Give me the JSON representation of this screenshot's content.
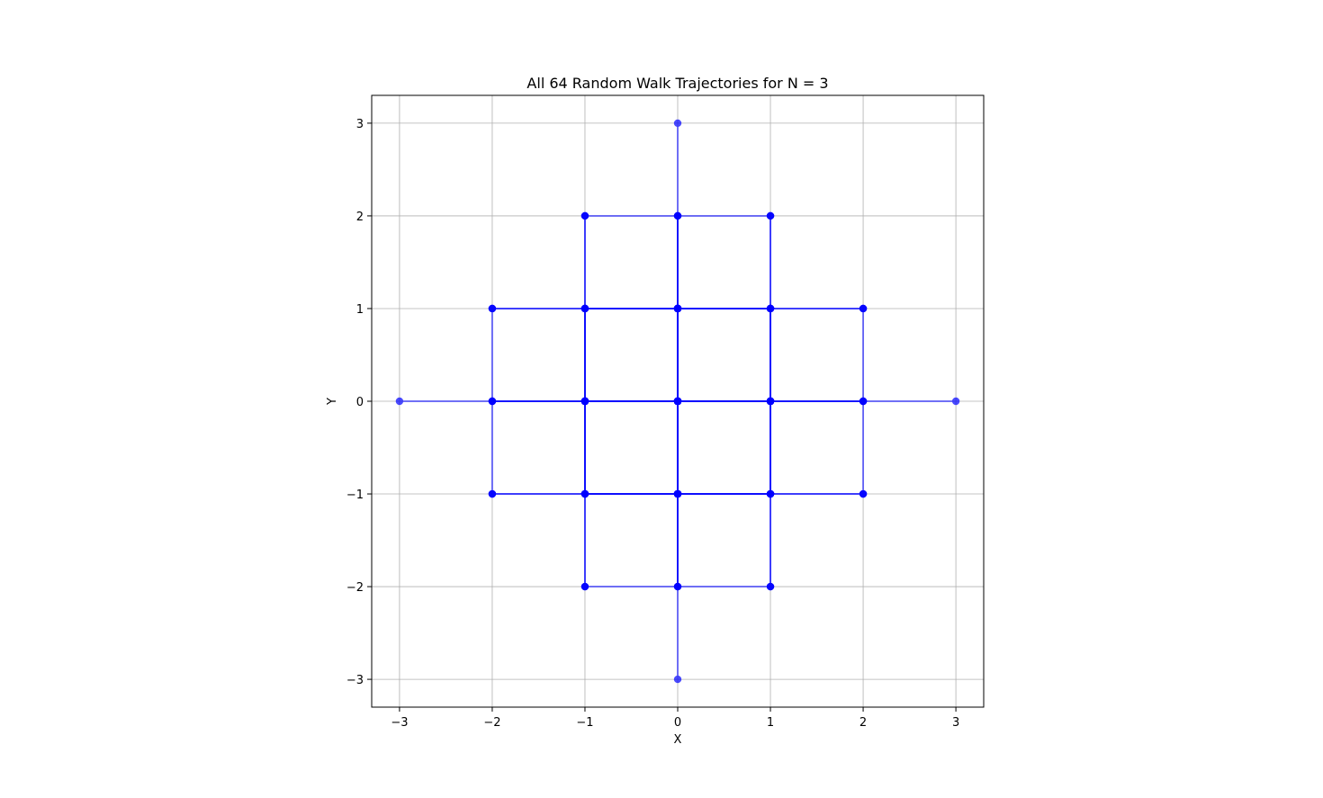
{
  "chart_data": {
    "type": "line",
    "title": "All 64 Random Walk Trajectories for N = 3",
    "xlabel": "X",
    "ylabel": "Y",
    "xlim": [
      -3.3,
      3.3
    ],
    "ylim": [
      -3.3,
      3.3
    ],
    "xticks": [
      -3,
      -2,
      -1,
      0,
      1,
      2,
      3
    ],
    "yticks": [
      -3,
      -2,
      -1,
      0,
      1,
      2,
      3
    ],
    "xtick_labels": [
      "−3",
      "−2",
      "−1",
      "0",
      "1",
      "2",
      "3"
    ],
    "ytick_labels": [
      "−3",
      "−2",
      "−1",
      "0",
      "1",
      "2",
      "3"
    ],
    "grid": true,
    "line_color": "#0000ff",
    "marker": "circle",
    "steps": 3,
    "step_moves": [
      [
        1,
        0
      ],
      [
        -1,
        0
      ],
      [
        0,
        1
      ],
      [
        0,
        -1
      ]
    ],
    "start": [
      0,
      0
    ],
    "trajectory_count": 64
  }
}
